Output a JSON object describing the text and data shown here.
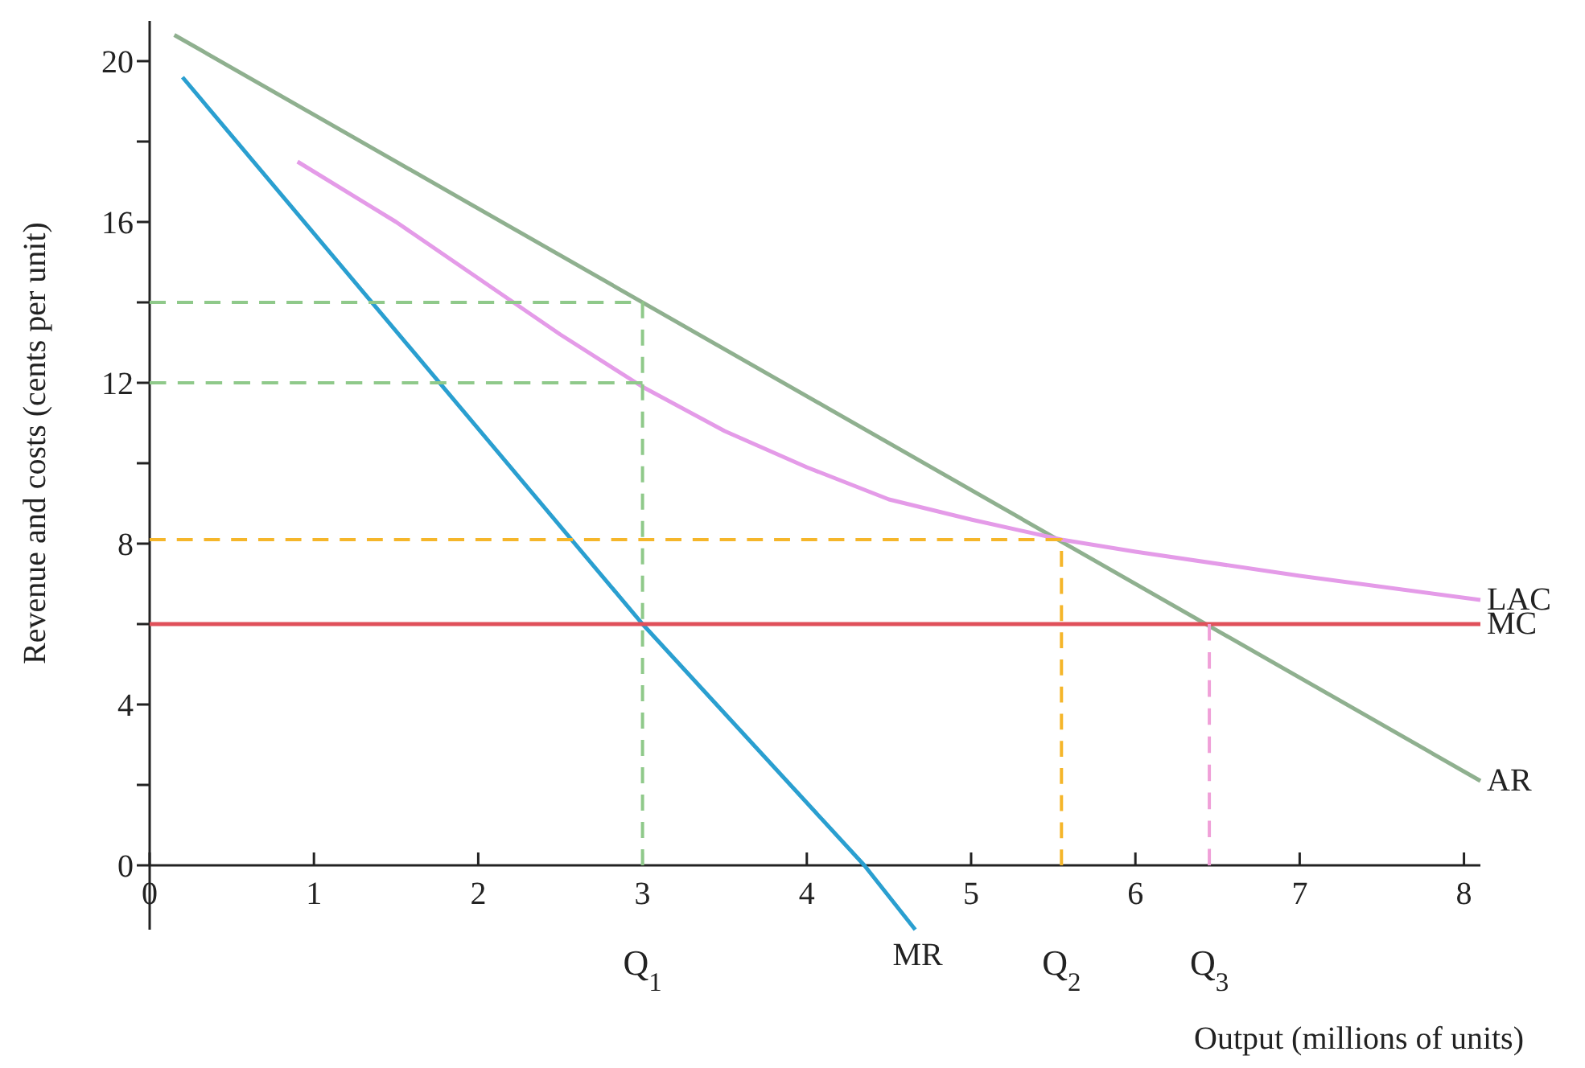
{
  "chart_data": {
    "type": "line",
    "xlabel": "Output (millions of units)",
    "ylabel": "Revenue and costs (cents per unit)",
    "xlim": [
      0,
      8.1
    ],
    "ylim": [
      -1.6,
      21
    ],
    "xticks": [
      0,
      1,
      2,
      3,
      4,
      5,
      6,
      7,
      8
    ],
    "yticks": [
      0,
      {
        "value": 2,
        "label": null
      },
      4,
      {
        "value": 6,
        "label": null
      },
      8,
      {
        "value": 10,
        "label": null
      },
      12,
      {
        "value": 14,
        "label": null
      },
      16,
      {
        "value": 18,
        "label": null
      },
      20
    ],
    "grid": false,
    "marker": "none",
    "series": [
      {
        "name": "AR",
        "color": "#8fb08f",
        "x": [
          0.15,
          8.1
        ],
        "values": [
          20.65,
          2.1
        ]
      },
      {
        "name": "MR",
        "color": "#2a9fd0",
        "x": [
          0.2,
          3,
          4.35,
          4.66
        ],
        "values": [
          19.6,
          6,
          0,
          -1.6
        ]
      },
      {
        "name": "LAC",
        "color": "#e49be8",
        "x": [
          0.9,
          1.5,
          2,
          2.5,
          3,
          3.5,
          4,
          4.5,
          5,
          5.55,
          6,
          7,
          8.1
        ],
        "values": [
          17.5,
          16,
          14.6,
          13.2,
          11.9,
          10.8,
          9.9,
          9.1,
          8.6,
          8.1,
          7.8,
          7.2,
          6.6
        ]
      },
      {
        "name": "MC",
        "color": "#e0505a",
        "x": [
          0,
          8.1
        ],
        "values": [
          6,
          6
        ]
      },
      {
        "color": "#8fc98a",
        "line_style": "dashed",
        "x": [
          0,
          3,
          3
        ],
        "values": [
          14,
          14,
          0
        ]
      },
      {
        "color": "#8fc98a",
        "line_style": "dashed",
        "x": [
          0,
          3
        ],
        "values": [
          12,
          12
        ]
      },
      {
        "color": "#f5b62a",
        "line_style": "dashed",
        "x": [
          0,
          5.55,
          5.55
        ],
        "values": [
          8.1,
          8.1,
          0
        ]
      },
      {
        "color": "#f0a0d8",
        "line_style": "dashed",
        "x": [
          6.45,
          6.45
        ],
        "values": [
          6,
          0
        ]
      }
    ],
    "annotations": [
      {
        "text": "Q$_{1}$",
        "x": 3,
        "y": 0
      },
      {
        "text": "Q$_{2}$",
        "x": 5.55,
        "y": 0
      },
      {
        "text": "Q$_{3}$",
        "x": 6.45,
        "y": 0
      }
    ]
  }
}
